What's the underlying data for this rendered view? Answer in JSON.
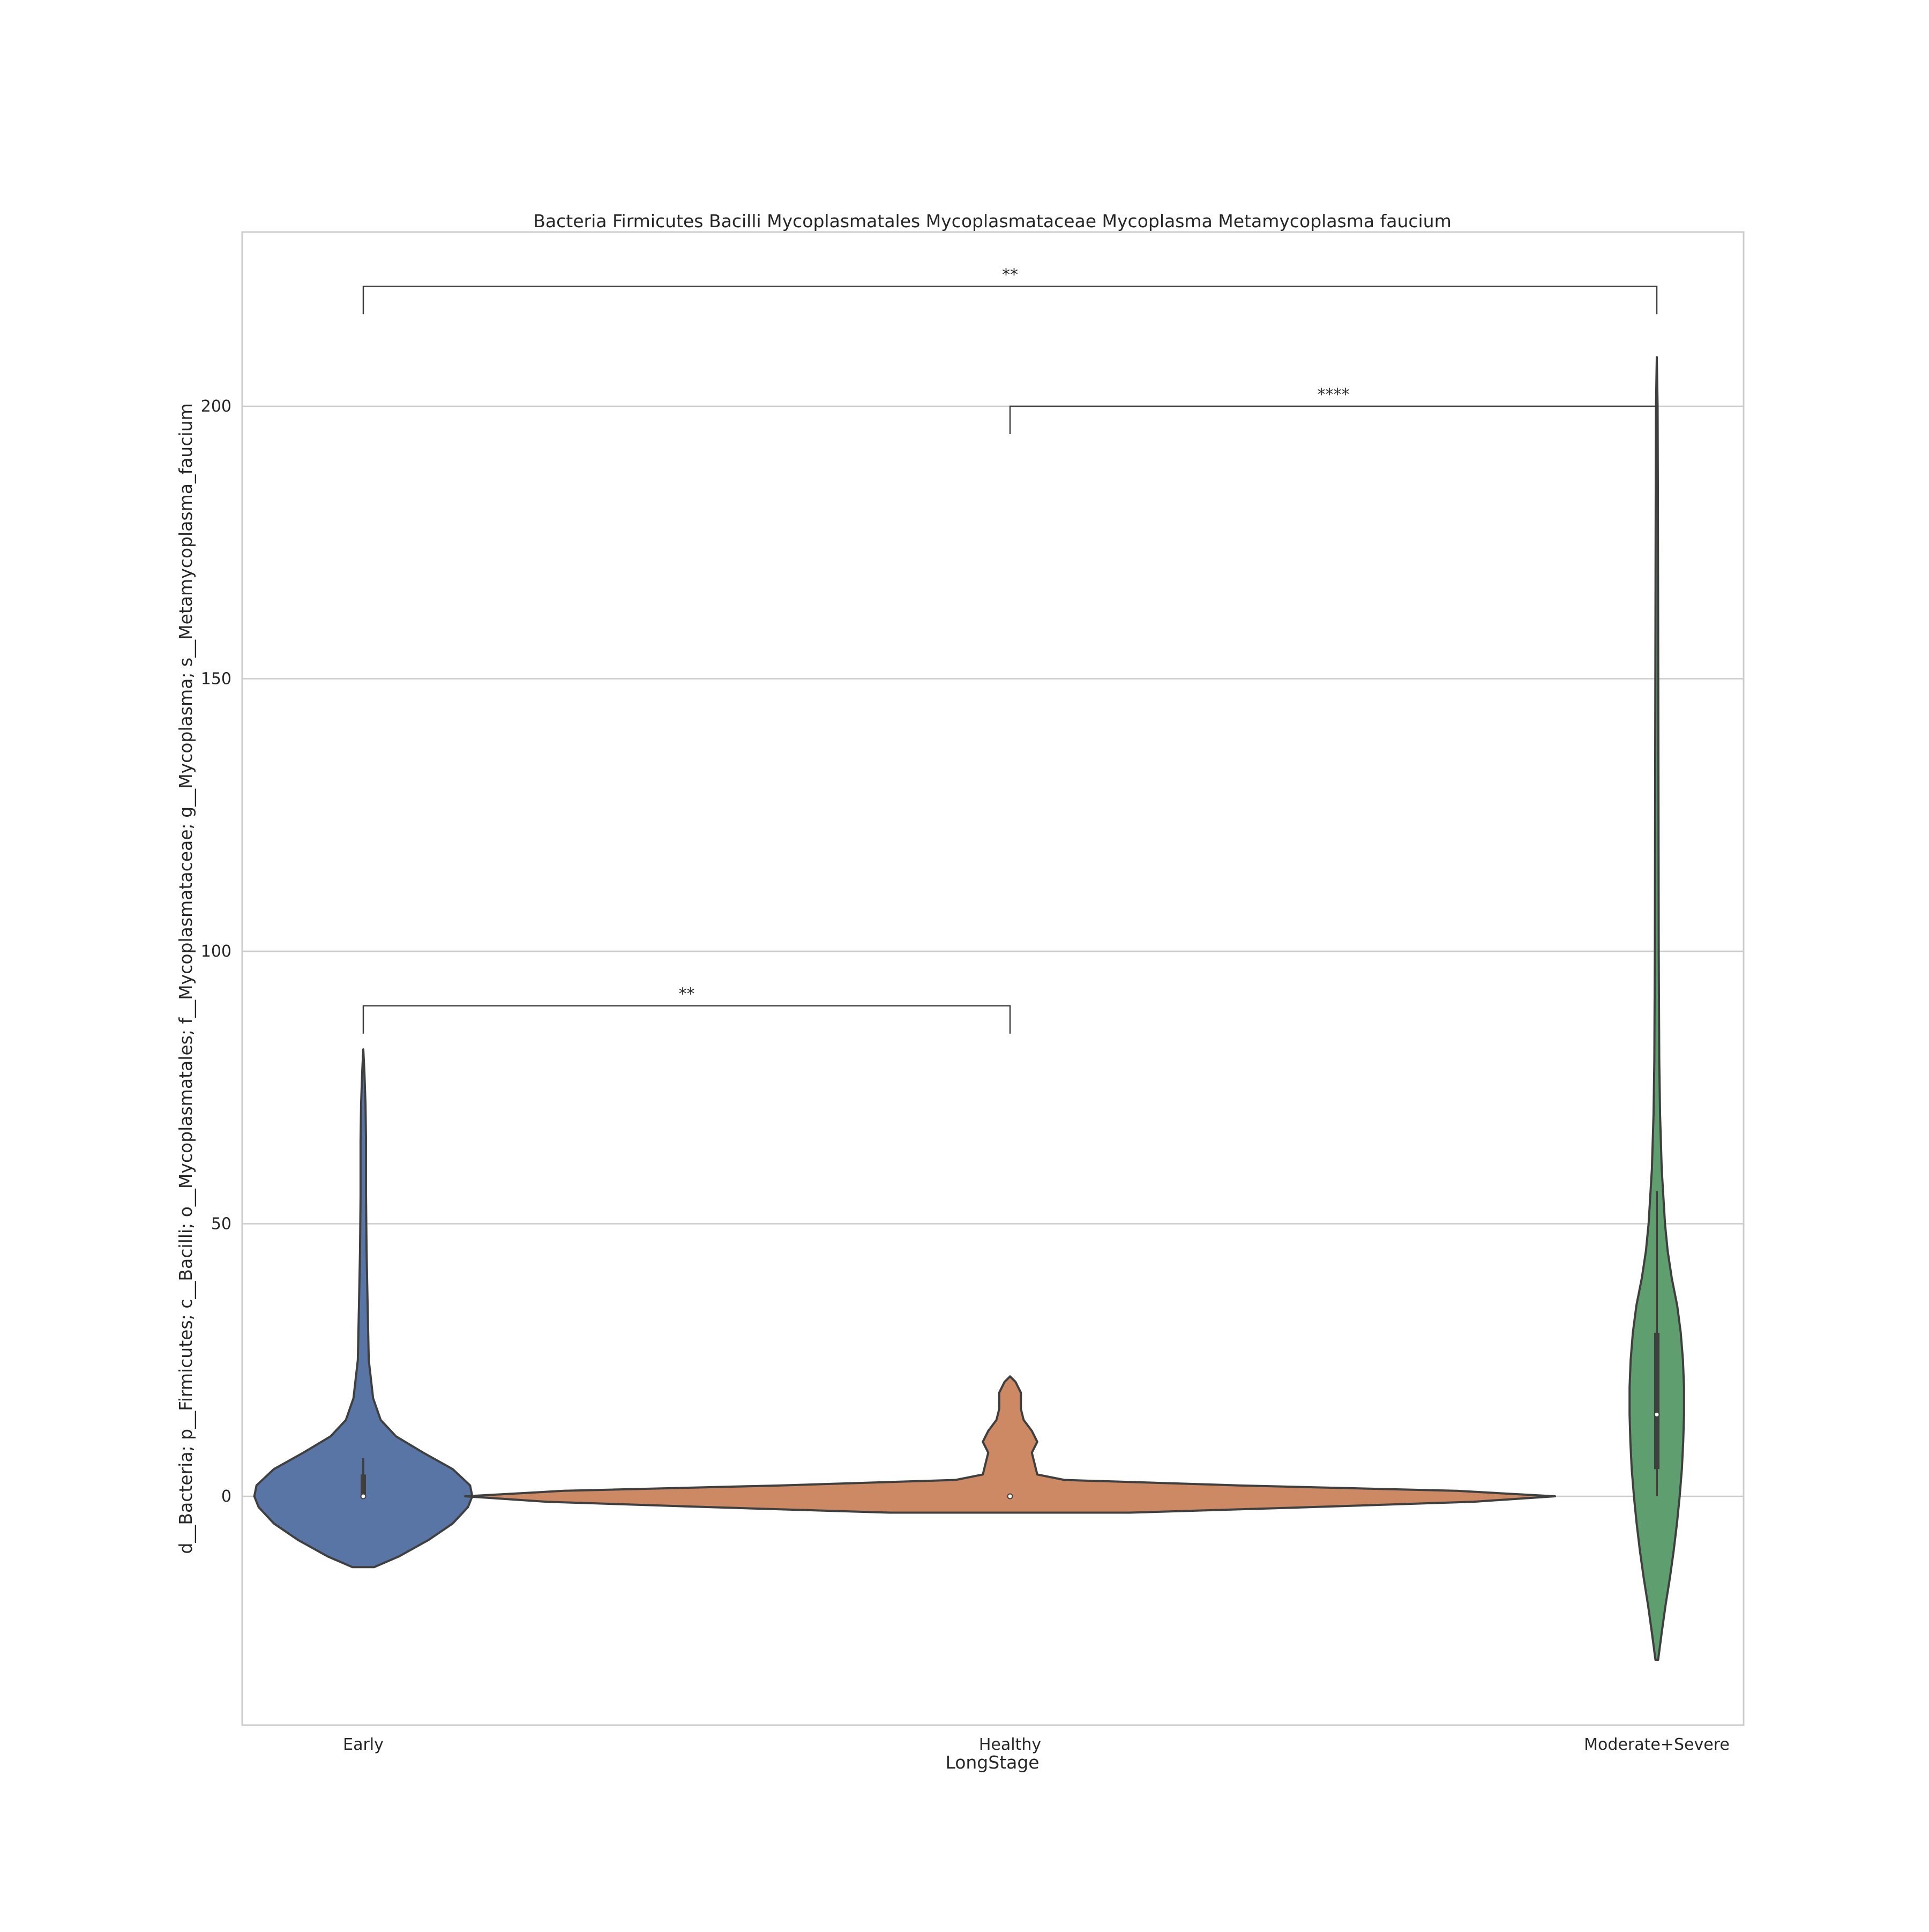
{
  "chart_data": {
    "type": "violin",
    "title": "Bacteria Firmicutes Bacilli Mycoplasmatales Mycoplasmataceae Mycoplasma Metamycoplasma faucium",
    "xlabel": "LongStage",
    "ylabel": "d__Bacteria; p__Firmicutes; c__Bacilli; o__Mycoplasmatales; f__Mycoplasmataceae; g__Mycoplasma; s__Metamycoplasma_faucium",
    "ylim": [
      -42,
      232
    ],
    "yticks": [
      0,
      50,
      100,
      150,
      200
    ],
    "grid": "horizontal",
    "categories": [
      "Early",
      "Healthy",
      "Moderate+Severe"
    ],
    "series": [
      {
        "category": "Early",
        "color": "#5875a6",
        "min": -13,
        "max": 82,
        "median": 0,
        "q1": 0,
        "q3": 4,
        "whisker_low": 0,
        "whisker_high": 7,
        "max_half_width": 20,
        "density": [
          [
            -13,
            0.1
          ],
          [
            -11,
            0.33
          ],
          [
            -8,
            0.6
          ],
          [
            -5,
            0.82
          ],
          [
            -2,
            0.96
          ],
          [
            0,
            1.0
          ],
          [
            2,
            0.98
          ],
          [
            5,
            0.82
          ],
          [
            8,
            0.55
          ],
          [
            11,
            0.3
          ],
          [
            14,
            0.16
          ],
          [
            18,
            0.09
          ],
          [
            25,
            0.05
          ],
          [
            35,
            0.04
          ],
          [
            45,
            0.03
          ],
          [
            55,
            0.025
          ],
          [
            65,
            0.025
          ],
          [
            72,
            0.02
          ],
          [
            78,
            0.01
          ],
          [
            82,
            0.0
          ]
        ]
      },
      {
        "category": "Healthy",
        "color": "#cc8963",
        "min": -3,
        "max": 22,
        "median": 0,
        "q1": 0,
        "q3": 0,
        "whisker_low": 0,
        "whisker_high": 0,
        "max_half_width": 100,
        "density": [
          [
            -3,
            0.22
          ],
          [
            -2,
            0.55
          ],
          [
            -1,
            0.85
          ],
          [
            0,
            1.0
          ],
          [
            1,
            0.82
          ],
          [
            2,
            0.42
          ],
          [
            3,
            0.1
          ],
          [
            4,
            0.05
          ],
          [
            6,
            0.045
          ],
          [
            8,
            0.04
          ],
          [
            10,
            0.05
          ],
          [
            12,
            0.04
          ],
          [
            14,
            0.025
          ],
          [
            16,
            0.02
          ],
          [
            19,
            0.02
          ],
          [
            21,
            0.01
          ],
          [
            22,
            0.0
          ]
        ]
      },
      {
        "category": "Moderate+Severe",
        "color": "#5f9e6e",
        "min": -30,
        "max": 209,
        "median": 15,
        "q1": 5,
        "q3": 30,
        "whisker_low": 0,
        "whisker_high": 56,
        "max_half_width": 5,
        "density": [
          [
            -30,
            0.05
          ],
          [
            -25,
            0.18
          ],
          [
            -20,
            0.32
          ],
          [
            -15,
            0.48
          ],
          [
            -10,
            0.62
          ],
          [
            -5,
            0.74
          ],
          [
            0,
            0.84
          ],
          [
            5,
            0.92
          ],
          [
            10,
            0.97
          ],
          [
            15,
            1.0
          ],
          [
            20,
            1.0
          ],
          [
            25,
            0.96
          ],
          [
            30,
            0.88
          ],
          [
            35,
            0.75
          ],
          [
            40,
            0.55
          ],
          [
            45,
            0.4
          ],
          [
            50,
            0.3
          ],
          [
            60,
            0.18
          ],
          [
            70,
            0.12
          ],
          [
            80,
            0.09
          ],
          [
            100,
            0.07
          ],
          [
            130,
            0.06
          ],
          [
            160,
            0.05
          ],
          [
            185,
            0.04
          ],
          [
            200,
            0.03
          ],
          [
            209,
            0.0
          ]
        ]
      }
    ],
    "annotations": [
      {
        "from": "Early",
        "to": "Healthy",
        "y": 90,
        "label": "**"
      },
      {
        "from": "Healthy",
        "to": "Moderate+Severe",
        "y": 200,
        "label": "****"
      },
      {
        "from": "Early",
        "to": "Moderate+Severe",
        "y": 222,
        "label": "**"
      }
    ]
  }
}
